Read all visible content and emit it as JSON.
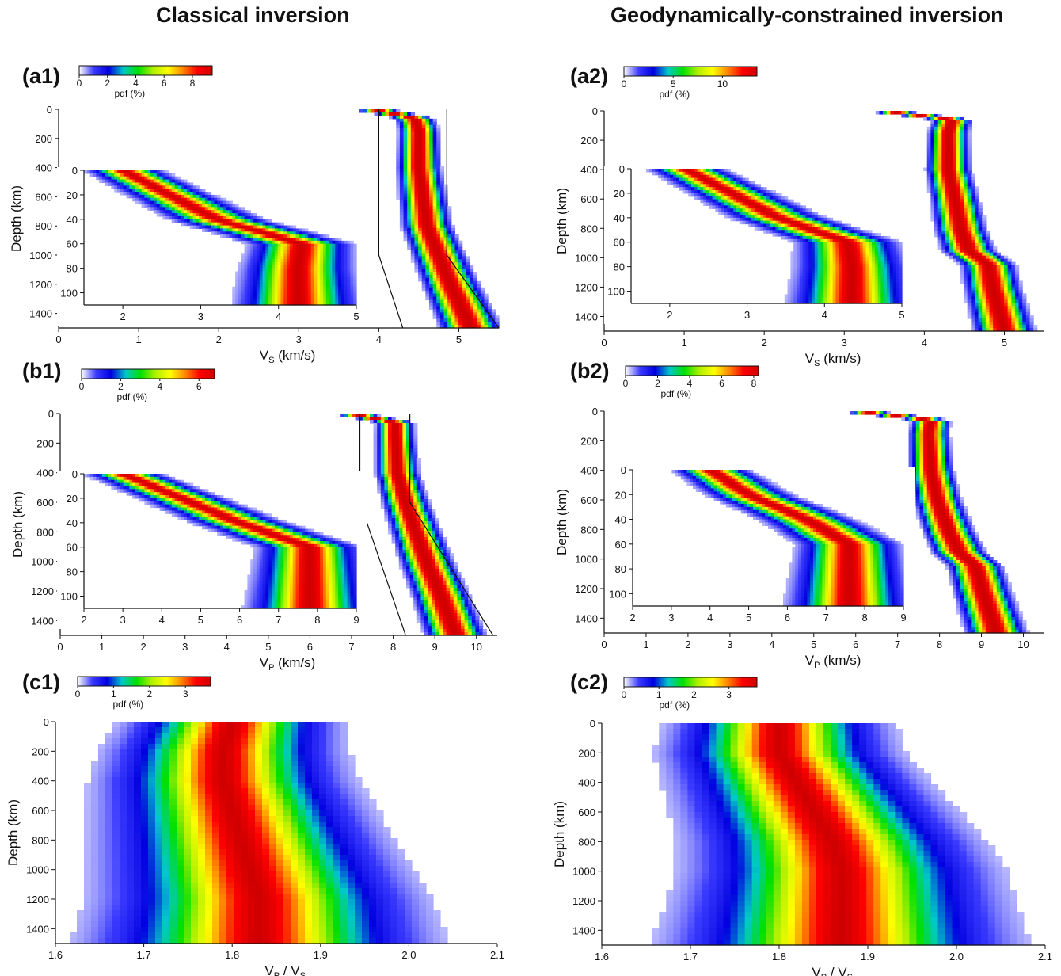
{
  "titles": {
    "left": "Classical inversion",
    "right": "Geodynamically-constrained inversion"
  },
  "colorscale": [
    "#ffffff",
    "#3a3aff",
    "#0000e0",
    "#00c8c8",
    "#00e000",
    "#b0f000",
    "#ffff00",
    "#ff8800",
    "#ff0000",
    "#d00000"
  ],
  "chart_data": [
    {
      "id": "a1",
      "label": "(a1)",
      "type": "heatmap",
      "xlabel": "V",
      "xlabel_sub": "S",
      "xlabel_unit": " (km/s)",
      "ylabel": "Depth (km)",
      "xlim": [
        0,
        5.5
      ],
      "ylim": [
        1500,
        0
      ],
      "xticks": [
        "0",
        "1",
        "2",
        "3",
        "4",
        "5"
      ],
      "yticks": [
        "0",
        "200",
        "400",
        "600",
        "800",
        "1000",
        "1200",
        "1400"
      ],
      "colorbar": {
        "label": "pdf (%)",
        "ticks": [
          "0",
          "2",
          "4",
          "6",
          "8"
        ],
        "max": 9.4
      },
      "peak_track": {
        "depth": [
          0,
          60,
          150,
          400,
          600,
          800,
          1000,
          1200,
          1500
        ],
        "value": [
          3.9,
          4.45,
          4.5,
          4.5,
          4.55,
          4.6,
          4.75,
          4.9,
          5.15
        ]
      },
      "prior_bounds": {
        "lower": [
          4.0,
          4.0,
          4.3,
          4.3
        ],
        "upper": [
          4.85,
          4.85,
          5.5,
          5.5
        ],
        "depth": [
          0,
          1000,
          1500,
          1500
        ]
      },
      "inset": {
        "xlim": [
          1.5,
          5
        ],
        "ylim": [
          110,
          0
        ],
        "xticks": [
          "2",
          "3",
          "4",
          "5"
        ],
        "yticks": [
          "0",
          "20",
          "40",
          "60",
          "80",
          "100"
        ],
        "peak_track": {
          "depth": [
            0,
            20,
            40,
            60,
            80,
            100,
            110
          ],
          "value": [
            2.0,
            2.6,
            3.2,
            4.3,
            4.25,
            4.25,
            4.25
          ]
        }
      }
    },
    {
      "id": "a2",
      "label": "(a2)",
      "type": "heatmap",
      "xlabel": "V",
      "xlabel_sub": "S",
      "xlabel_unit": " (km/s)",
      "ylabel": "Depth (km)",
      "xlim": [
        0,
        5.5
      ],
      "ylim": [
        1500,
        0
      ],
      "xticks": [
        "0",
        "1",
        "2",
        "3",
        "4",
        "5"
      ],
      "yticks": [
        "0",
        "200",
        "400",
        "600",
        "800",
        "1000",
        "1200",
        "1400"
      ],
      "colorbar": {
        "label": "pdf (%)",
        "ticks": [
          "0",
          "5",
          "10"
        ],
        "max": 13.5
      },
      "peak_track": {
        "depth": [
          0,
          60,
          150,
          400,
          600,
          800,
          950,
          1050,
          1200,
          1500
        ],
        "value": [
          3.5,
          4.35,
          4.3,
          4.3,
          4.38,
          4.45,
          4.55,
          4.8,
          4.85,
          5.0
        ]
      },
      "inset": {
        "xlim": [
          1.5,
          5
        ],
        "ylim": [
          110,
          0
        ],
        "xticks": [
          "2",
          "3",
          "4",
          "5"
        ],
        "yticks": [
          "0",
          "20",
          "40",
          "60",
          "80",
          "100"
        ],
        "peak_track": {
          "depth": [
            0,
            20,
            40,
            60,
            80,
            100,
            110
          ],
          "value": [
            2.2,
            2.8,
            3.4,
            4.3,
            4.35,
            4.35,
            4.35
          ]
        }
      }
    },
    {
      "id": "b1",
      "label": "(b1)",
      "type": "heatmap",
      "xlabel": "V",
      "xlabel_sub": "P",
      "xlabel_unit": " (km/s)",
      "ylabel": "Depth (km)",
      "xlim": [
        0,
        10.5
      ],
      "ylim": [
        1500,
        0
      ],
      "xticks": [
        "0",
        "1",
        "2",
        "3",
        "4",
        "5",
        "6",
        "7",
        "8",
        "9",
        "10"
      ],
      "yticks": [
        "0",
        "200",
        "400",
        "600",
        "800",
        "1000",
        "1200",
        "1400"
      ],
      "colorbar": {
        "label": "pdf (%)",
        "ticks": [
          "0",
          "2",
          "4",
          "6"
        ],
        "max": 6.8
      },
      "peak_track": {
        "depth": [
          0,
          60,
          150,
          400,
          600,
          800,
          1000,
          1200,
          1500
        ],
        "value": [
          7.0,
          8.05,
          8.05,
          8.1,
          8.3,
          8.55,
          8.8,
          9.1,
          9.5
        ]
      },
      "prior_bounds": {
        "lower": [
          7.2,
          7.2,
          8.3,
          8.3
        ],
        "upper": [
          8.4,
          8.4,
          10.4,
          10.4
        ],
        "depth": [
          0,
          600,
          1500,
          1500
        ]
      },
      "inset": {
        "xlim": [
          2,
          9
        ],
        "ylim": [
          110,
          0
        ],
        "xticks": [
          "2",
          "3",
          "4",
          "5",
          "6",
          "7",
          "8",
          "9"
        ],
        "yticks": [
          "0",
          "20",
          "40",
          "60",
          "80",
          "100"
        ],
        "peak_track": {
          "depth": [
            0,
            20,
            40,
            60,
            80,
            100,
            110
          ],
          "value": [
            3.0,
            4.5,
            6.0,
            7.8,
            7.8,
            7.8,
            7.8
          ]
        }
      }
    },
    {
      "id": "b2",
      "label": "(b2)",
      "type": "heatmap",
      "xlabel": "V",
      "xlabel_sub": "P",
      "xlabel_unit": " (km/s)",
      "ylabel": "Depth (km)",
      "xlim": [
        0,
        10.5
      ],
      "ylim": [
        1500,
        0
      ],
      "xticks": [
        "0",
        "1",
        "2",
        "3",
        "4",
        "5",
        "6",
        "7",
        "8",
        "9",
        "10"
      ],
      "yticks": [
        "0",
        "200",
        "400",
        "600",
        "800",
        "1000",
        "1200",
        "1400"
      ],
      "colorbar": {
        "label": "pdf (%)",
        "ticks": [
          "0",
          "2",
          "4",
          "6",
          "8"
        ],
        "max": 8.3
      },
      "peak_track": {
        "depth": [
          0,
          60,
          150,
          400,
          600,
          800,
          950,
          1050,
          1200,
          1500
        ],
        "value": [
          6.0,
          7.8,
          7.75,
          7.8,
          7.95,
          8.2,
          8.45,
          8.85,
          9.0,
          9.35
        ]
      },
      "inset": {
        "xlim": [
          2,
          9
        ],
        "ylim": [
          110,
          0
        ],
        "xticks": [
          "2",
          "3",
          "4",
          "5",
          "6",
          "7",
          "8",
          "9"
        ],
        "yticks": [
          "0",
          "20",
          "40",
          "60",
          "80",
          "100"
        ],
        "peak_track": {
          "depth": [
            0,
            20,
            40,
            60,
            80,
            100,
            110
          ],
          "value": [
            4.0,
            5.0,
            6.5,
            7.6,
            7.6,
            7.6,
            7.6
          ]
        }
      }
    },
    {
      "id": "c1",
      "label": "(c1)",
      "type": "heatmap",
      "xlabel": "V",
      "xlabel_sub": "P",
      "xlabel_mid": " / V",
      "xlabel_sub2": "S",
      "xlabel_unit": "",
      "ylabel": "Depth (km)",
      "xlim": [
        1.6,
        2.1
      ],
      "ylim": [
        1500,
        0
      ],
      "xticks": [
        "1.6",
        "1.7",
        "1.8",
        "1.9",
        "2.0",
        "2.1"
      ],
      "yticks": [
        "0",
        "200",
        "400",
        "600",
        "800",
        "1000",
        "1200",
        "1400"
      ],
      "colorbar": {
        "label": "pdf (%)",
        "ticks": [
          "0",
          "1",
          "2",
          "3"
        ],
        "max": 3.7
      },
      "peak_track": {
        "depth": [
          0,
          200,
          400,
          600,
          800,
          1000,
          1200,
          1500
        ],
        "value": [
          1.8,
          1.79,
          1.79,
          1.8,
          1.81,
          1.82,
          1.83,
          1.83
        ]
      }
    },
    {
      "id": "c2",
      "label": "(c2)",
      "type": "heatmap",
      "xlabel": "V",
      "xlabel_sub": "P",
      "xlabel_mid": " / V",
      "xlabel_sub2": "S",
      "xlabel_unit": "",
      "ylabel": "Depth (km)",
      "xlim": [
        1.6,
        2.1
      ],
      "ylim": [
        1500,
        0
      ],
      "xticks": [
        "1.6",
        "1.7",
        "1.8",
        "1.9",
        "2.0",
        "2.1"
      ],
      "yticks": [
        "0",
        "200",
        "400",
        "600",
        "800",
        "1000",
        "1200",
        "1400"
      ],
      "colorbar": {
        "label": "pdf (%)",
        "ticks": [
          "0",
          "1",
          "2",
          "3"
        ],
        "max": 3.8
      },
      "peak_track": {
        "depth": [
          0,
          200,
          400,
          600,
          800,
          1000,
          1200,
          1500
        ],
        "value": [
          1.8,
          1.8,
          1.82,
          1.84,
          1.86,
          1.87,
          1.87,
          1.87
        ]
      }
    }
  ]
}
